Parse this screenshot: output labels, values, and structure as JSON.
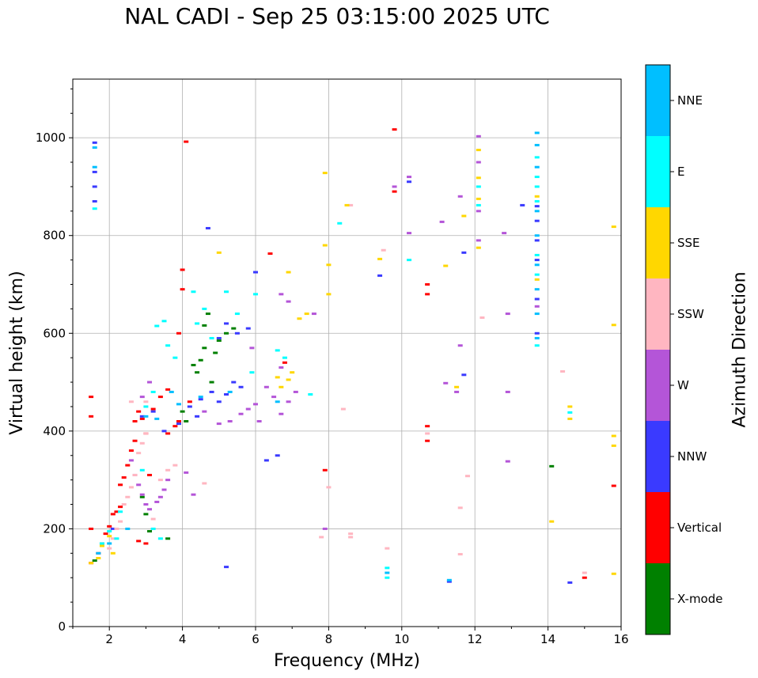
{
  "title": "NAL CADI - Sep 25 03:15:00 2025 UTC",
  "chart_data": {
    "type": "scatter",
    "title": "NAL CADI - Sep 25 03:15:00 2025 UTC",
    "xlabel": "Frequency (MHz)",
    "ylabel": "Virtual height (km)",
    "xlim": [
      1,
      16
    ],
    "ylim": [
      0,
      1120
    ],
    "xticks": [
      2,
      4,
      6,
      8,
      10,
      12,
      14,
      16
    ],
    "yticks": [
      0,
      200,
      400,
      600,
      800,
      1000
    ],
    "grid": true,
    "colorbar": {
      "label": "Azimuth Direction",
      "categories": [
        {
          "name": "X-mode",
          "color": "#008000"
        },
        {
          "name": "Vertical",
          "color": "#ff0000"
        },
        {
          "name": "NNW",
          "color": "#3a3aff"
        },
        {
          "name": "W",
          "color": "#b455d8"
        },
        {
          "name": "SSW",
          "color": "#ffb6c1"
        },
        {
          "name": "SSE",
          "color": "#ffd700"
        },
        {
          "name": "E",
          "color": "#00ffff"
        },
        {
          "name": "NNE",
          "color": "#00bfff"
        }
      ]
    },
    "series": [
      {
        "name": "X-mode",
        "points": [
          [
            3.6,
            180
          ],
          [
            3.1,
            195
          ],
          [
            4.0,
            440
          ],
          [
            4.1,
            420
          ],
          [
            4.3,
            535
          ],
          [
            4.5,
            545
          ],
          [
            4.6,
            570
          ],
          [
            4.6,
            616
          ],
          [
            4.8,
            500
          ],
          [
            4.9,
            560
          ],
          [
            5.0,
            585
          ],
          [
            5.2,
            600
          ],
          [
            5.4,
            610
          ],
          [
            4.4,
            520
          ],
          [
            14.1,
            328
          ],
          [
            3.0,
            230
          ],
          [
            2.9,
            265
          ],
          [
            4.7,
            640
          ],
          [
            1.6,
            135
          ]
        ]
      },
      {
        "name": "Vertical",
        "points": [
          [
            1.5,
            470
          ],
          [
            1.5,
            430
          ],
          [
            1.5,
            200
          ],
          [
            1.5,
            130
          ],
          [
            1.7,
            150
          ],
          [
            1.8,
            170
          ],
          [
            1.9,
            190
          ],
          [
            2.0,
            205
          ],
          [
            2.1,
            230
          ],
          [
            2.2,
            235
          ],
          [
            2.3,
            245
          ],
          [
            2.3,
            290
          ],
          [
            2.4,
            305
          ],
          [
            2.5,
            330
          ],
          [
            2.6,
            360
          ],
          [
            2.7,
            380
          ],
          [
            2.7,
            420
          ],
          [
            2.8,
            440
          ],
          [
            2.9,
            425
          ],
          [
            3.0,
            395
          ],
          [
            3.2,
            445
          ],
          [
            3.4,
            470
          ],
          [
            3.6,
            485
          ],
          [
            3.6,
            395
          ],
          [
            3.8,
            410
          ],
          [
            3.9,
            420
          ],
          [
            3.9,
            600
          ],
          [
            4.0,
            690
          ],
          [
            4.0,
            730
          ],
          [
            4.1,
            992
          ],
          [
            4.2,
            460
          ],
          [
            3.0,
            170
          ],
          [
            2.8,
            175
          ],
          [
            6.4,
            763
          ],
          [
            9.8,
            1017
          ],
          [
            9.8,
            890
          ],
          [
            10.7,
            700
          ],
          [
            10.7,
            680
          ],
          [
            10.7,
            410
          ],
          [
            10.7,
            380
          ],
          [
            15.8,
            288
          ],
          [
            15.0,
            100
          ],
          [
            7.9,
            320
          ],
          [
            6.8,
            540
          ],
          [
            3.1,
            310
          ]
        ]
      },
      {
        "name": "NNW",
        "points": [
          [
            1.6,
            990
          ],
          [
            1.6,
            930
          ],
          [
            1.6,
            900
          ],
          [
            1.6,
            870
          ],
          [
            2.9,
            430
          ],
          [
            3.2,
            440
          ],
          [
            3.5,
            400
          ],
          [
            3.9,
            415
          ],
          [
            4.2,
            450
          ],
          [
            4.4,
            430
          ],
          [
            4.5,
            465
          ],
          [
            4.8,
            480
          ],
          [
            5.0,
            460
          ],
          [
            5.2,
            475
          ],
          [
            5.4,
            500
          ],
          [
            5.6,
            490
          ],
          [
            6.3,
            340
          ],
          [
            6.6,
            350
          ],
          [
            5.0,
            590
          ],
          [
            5.2,
            620
          ],
          [
            5.5,
            600
          ],
          [
            5.8,
            610
          ],
          [
            9.4,
            718
          ],
          [
            10.2,
            910
          ],
          [
            11.3,
            92
          ],
          [
            11.7,
            765
          ],
          [
            11.7,
            515
          ],
          [
            13.3,
            862
          ],
          [
            13.7,
            860
          ],
          [
            13.7,
            830
          ],
          [
            13.7,
            790
          ],
          [
            13.7,
            750
          ],
          [
            13.7,
            670
          ],
          [
            13.7,
            600
          ],
          [
            14.6,
            90
          ],
          [
            5.2,
            122
          ],
          [
            2.1,
            200
          ],
          [
            4.7,
            815
          ],
          [
            6.0,
            725
          ]
        ]
      },
      {
        "name": "W",
        "points": [
          [
            2.6,
            340
          ],
          [
            2.7,
            310
          ],
          [
            2.8,
            290
          ],
          [
            2.9,
            270
          ],
          [
            3.0,
            250
          ],
          [
            3.1,
            240
          ],
          [
            3.3,
            255
          ],
          [
            3.4,
            265
          ],
          [
            3.5,
            280
          ],
          [
            3.6,
            300
          ],
          [
            4.1,
            315
          ],
          [
            4.3,
            270
          ],
          [
            2.9,
            470
          ],
          [
            3.1,
            500
          ],
          [
            4.6,
            440
          ],
          [
            5.0,
            415
          ],
          [
            5.3,
            420
          ],
          [
            5.6,
            435
          ],
          [
            5.8,
            445
          ],
          [
            6.0,
            455
          ],
          [
            6.1,
            420
          ],
          [
            6.3,
            490
          ],
          [
            6.5,
            470
          ],
          [
            6.7,
            435
          ],
          [
            6.9,
            460
          ],
          [
            7.1,
            480
          ],
          [
            6.7,
            680
          ],
          [
            6.9,
            665
          ],
          [
            10.2,
            920
          ],
          [
            10.2,
            805
          ],
          [
            11.2,
            498
          ],
          [
            11.5,
            480
          ],
          [
            11.6,
            575
          ],
          [
            12.1,
            1003
          ],
          [
            12.1,
            950
          ],
          [
            12.1,
            850
          ],
          [
            12.1,
            790
          ],
          [
            12.8,
            805
          ],
          [
            12.9,
            640
          ],
          [
            12.9,
            480
          ],
          [
            12.9,
            338
          ],
          [
            13.7,
            655
          ],
          [
            7.9,
            200
          ],
          [
            9.8,
            900
          ],
          [
            11.1,
            828
          ],
          [
            11.6,
            880
          ],
          [
            7.6,
            640
          ],
          [
            5.9,
            570
          ],
          [
            6.7,
            530
          ]
        ]
      },
      {
        "name": "SSW",
        "points": [
          [
            2.0,
            160
          ],
          [
            2.1,
            180
          ],
          [
            2.2,
            200
          ],
          [
            2.3,
            215
          ],
          [
            2.4,
            250
          ],
          [
            2.5,
            265
          ],
          [
            2.6,
            285
          ],
          [
            2.7,
            310
          ],
          [
            2.8,
            355
          ],
          [
            2.9,
            375
          ],
          [
            3.0,
            395
          ],
          [
            3.2,
            220
          ],
          [
            3.4,
            300
          ],
          [
            3.6,
            320
          ],
          [
            3.8,
            330
          ],
          [
            4.6,
            293
          ],
          [
            8.4,
            445
          ],
          [
            8.6,
            190
          ],
          [
            8.6,
            183
          ],
          [
            8.0,
            285
          ],
          [
            8.6,
            862
          ],
          [
            9.5,
            770
          ],
          [
            9.6,
            160
          ],
          [
            10.7,
            395
          ],
          [
            11.6,
            148
          ],
          [
            11.6,
            243
          ],
          [
            11.8,
            308
          ],
          [
            12.2,
            632
          ],
          [
            14.4,
            522
          ],
          [
            15.0,
            110
          ],
          [
            7.8,
            183
          ],
          [
            3.0,
            460
          ],
          [
            2.6,
            460
          ]
        ]
      },
      {
        "name": "SSE",
        "points": [
          [
            1.5,
            130
          ],
          [
            1.7,
            140
          ],
          [
            1.8,
            165
          ],
          [
            2.0,
            185
          ],
          [
            2.1,
            150
          ],
          [
            6.6,
            510
          ],
          [
            6.7,
            490
          ],
          [
            6.9,
            505
          ],
          [
            7.0,
            520
          ],
          [
            7.2,
            630
          ],
          [
            7.4,
            640
          ],
          [
            7.9,
            928
          ],
          [
            7.9,
            780
          ],
          [
            8.0,
            740
          ],
          [
            8.0,
            680
          ],
          [
            8.5,
            862
          ],
          [
            9.4,
            752
          ],
          [
            11.2,
            738
          ],
          [
            11.5,
            490
          ],
          [
            11.7,
            840
          ],
          [
            12.1,
            975
          ],
          [
            12.1,
            918
          ],
          [
            12.1,
            875
          ],
          [
            12.1,
            775
          ],
          [
            13.7,
            880
          ],
          [
            13.7,
            710
          ],
          [
            14.1,
            215
          ],
          [
            14.6,
            425
          ],
          [
            14.6,
            450
          ],
          [
            15.8,
            818
          ],
          [
            15.8,
            617
          ],
          [
            15.8,
            390
          ],
          [
            15.8,
            370
          ],
          [
            15.8,
            108
          ],
          [
            5.0,
            765
          ],
          [
            6.9,
            725
          ]
        ]
      },
      {
        "name": "E",
        "points": [
          [
            1.6,
            855
          ],
          [
            1.8,
            170
          ],
          [
            2.0,
            195
          ],
          [
            2.2,
            180
          ],
          [
            2.3,
            235
          ],
          [
            2.9,
            320
          ],
          [
            3.0,
            450
          ],
          [
            3.2,
            480
          ],
          [
            3.3,
            615
          ],
          [
            3.5,
            625
          ],
          [
            3.6,
            575
          ],
          [
            3.8,
            550
          ],
          [
            4.3,
            685
          ],
          [
            4.4,
            620
          ],
          [
            4.6,
            650
          ],
          [
            4.8,
            590
          ],
          [
            5.2,
            685
          ],
          [
            5.5,
            640
          ],
          [
            5.9,
            520
          ],
          [
            6.0,
            680
          ],
          [
            6.6,
            565
          ],
          [
            6.8,
            550
          ],
          [
            7.5,
            475
          ],
          [
            8.3,
            825
          ],
          [
            9.6,
            120
          ],
          [
            9.6,
            100
          ],
          [
            10.2,
            750
          ],
          [
            12.1,
            900
          ],
          [
            12.1,
            862
          ],
          [
            13.7,
            960
          ],
          [
            13.7,
            920
          ],
          [
            13.7,
            900
          ],
          [
            13.7,
            870
          ],
          [
            13.7,
            760
          ],
          [
            13.7,
            720
          ],
          [
            13.7,
            575
          ],
          [
            14.6,
            438
          ],
          [
            3.4,
            180
          ],
          [
            3.2,
            200
          ]
        ]
      },
      {
        "name": "NNE",
        "points": [
          [
            1.6,
            980
          ],
          [
            1.6,
            940
          ],
          [
            1.7,
            150
          ],
          [
            2.0,
            170
          ],
          [
            2.5,
            200
          ],
          [
            3.0,
            430
          ],
          [
            3.3,
            425
          ],
          [
            3.7,
            480
          ],
          [
            3.9,
            455
          ],
          [
            9.6,
            110
          ],
          [
            11.3,
            95
          ],
          [
            13.7,
            1010
          ],
          [
            13.7,
            985
          ],
          [
            13.7,
            940
          ],
          [
            13.7,
            850
          ],
          [
            13.7,
            800
          ],
          [
            13.7,
            740
          ],
          [
            13.7,
            690
          ],
          [
            13.7,
            640
          ],
          [
            13.7,
            590
          ],
          [
            4.5,
            470
          ],
          [
            5.3,
            480
          ],
          [
            6.6,
            460
          ]
        ]
      }
    ]
  }
}
